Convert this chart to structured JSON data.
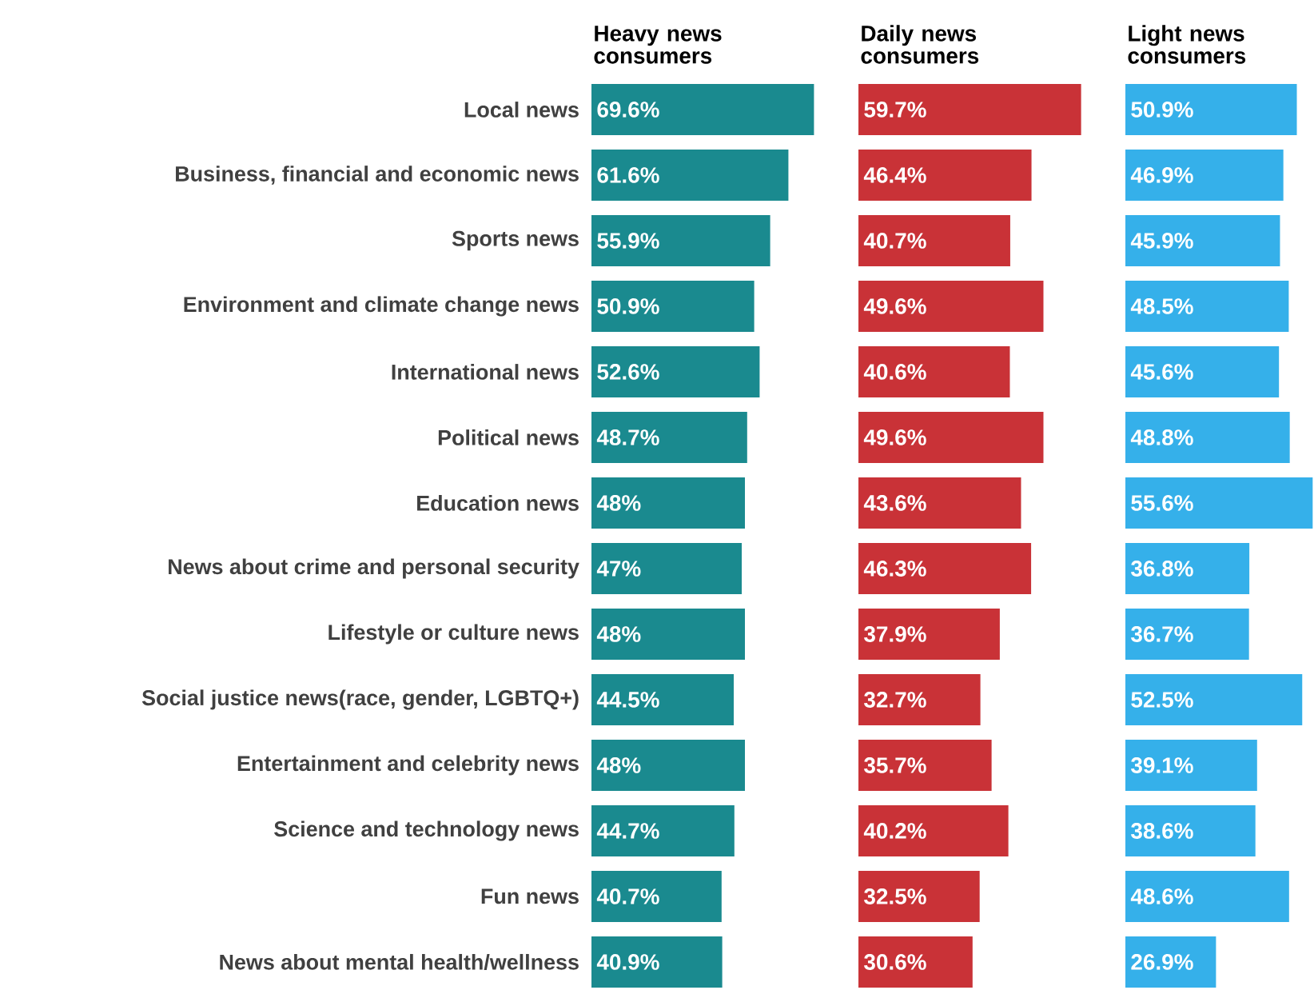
{
  "chart_data": [
    {
      "type": "bar",
      "orientation": "horizontal",
      "title": "Heavy news consumers",
      "tick_labels": "y",
      "color": "#1a8a8f",
      "xlim": [
        0,
        70
      ],
      "categories": [
        "Local news",
        "Business, financial and economic news",
        "Sports news",
        "Environment and climate change news",
        "International news",
        "Political news",
        "Education news",
        "News about crime and personal security",
        "Lifestyle or culture news",
        "Social justice news(race, gender, LGBTQ+)",
        "Entertainment and celebrity news",
        "Science and technology news",
        "Fun news",
        "News about mental health/wellness"
      ],
      "values": [
        69.6,
        61.6,
        55.9,
        50.9,
        52.6,
        48.7,
        48,
        47,
        48,
        44.5,
        48,
        44.7,
        40.7,
        40.9
      ],
      "value_labels": [
        "69.6%",
        "61.6%",
        "55.9%",
        "50.9%",
        "52.6%",
        "48.7%",
        "48%",
        "47%",
        "48%",
        "44.5%",
        "48%",
        "44.7%",
        "40.7%",
        "40.9%"
      ]
    },
    {
      "type": "bar",
      "orientation": "horizontal",
      "title": "Daily  news consumers",
      "tick_labels": false,
      "color": "#c93237",
      "xlim": [
        0,
        60
      ],
      "values": [
        59.7,
        46.4,
        40.7,
        49.6,
        40.6,
        49.6,
        43.6,
        46.3,
        37.9,
        32.7,
        35.7,
        40.2,
        32.5,
        30.6
      ],
      "value_labels": [
        "59.7%",
        "46.4%",
        "40.7%",
        "49.6%",
        "40.6%",
        "49.6%",
        "43.6%",
        "46.3%",
        "37.9%",
        "32.7%",
        "35.7%",
        "40.2%",
        "32.5%",
        "30.6%"
      ]
    },
    {
      "type": "bar",
      "orientation": "horizontal",
      "title": "Light news consumers",
      "tick_labels": false,
      "color": "#35b0ea",
      "xlim": [
        0,
        56
      ],
      "values": [
        50.9,
        46.9,
        45.9,
        48.5,
        45.6,
        48.8,
        55.6,
        36.8,
        36.7,
        52.5,
        39.1,
        38.6,
        48.6,
        26.9
      ],
      "value_labels": [
        "50.9%",
        "46.9%",
        "45.9%",
        "48.5%",
        "45.6%",
        "48.8%",
        "55.6%",
        "36.8%",
        "36.7%",
        "52.5%",
        "39.1%",
        "38.6%",
        "48.6%",
        "26.9%"
      ]
    }
  ]
}
